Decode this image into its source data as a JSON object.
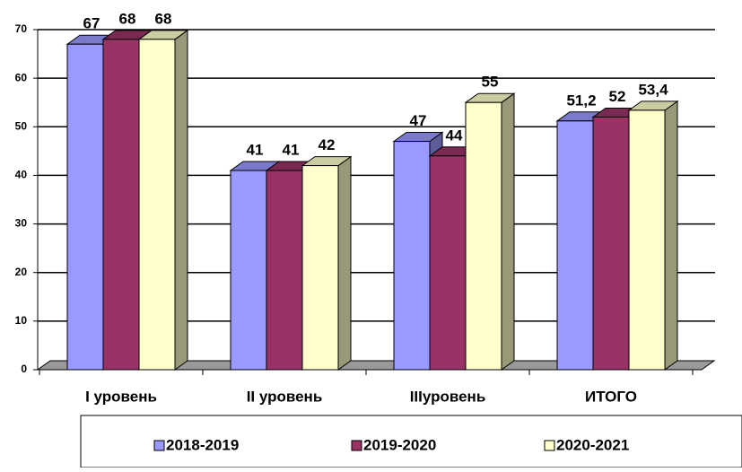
{
  "chart_data": {
    "type": "bar3d",
    "categories": [
      "I уровень",
      "II уровень",
      "IIIуровень",
      "ИТОГО"
    ],
    "series": [
      {
        "name": "2018-2019",
        "color": "#9999ff",
        "values": [
          67,
          41,
          47,
          51.2
        ],
        "value_labels": [
          "67",
          "41",
          "47",
          "51,2"
        ]
      },
      {
        "name": "2019-2020",
        "color": "#993366",
        "values": [
          68,
          41,
          44,
          52
        ]
      },
      {
        "name": "2020-2021",
        "color": "#ffffcc",
        "values": [
          68,
          42,
          55,
          53.4
        ],
        "value_labels": [
          "68",
          "42",
          "55",
          "53,4"
        ]
      }
    ],
    "ylim": [
      0,
      70
    ],
    "yticks": [
      0,
      10,
      20,
      30,
      40,
      50,
      60,
      70
    ],
    "grid": true,
    "legend": "bottom"
  }
}
